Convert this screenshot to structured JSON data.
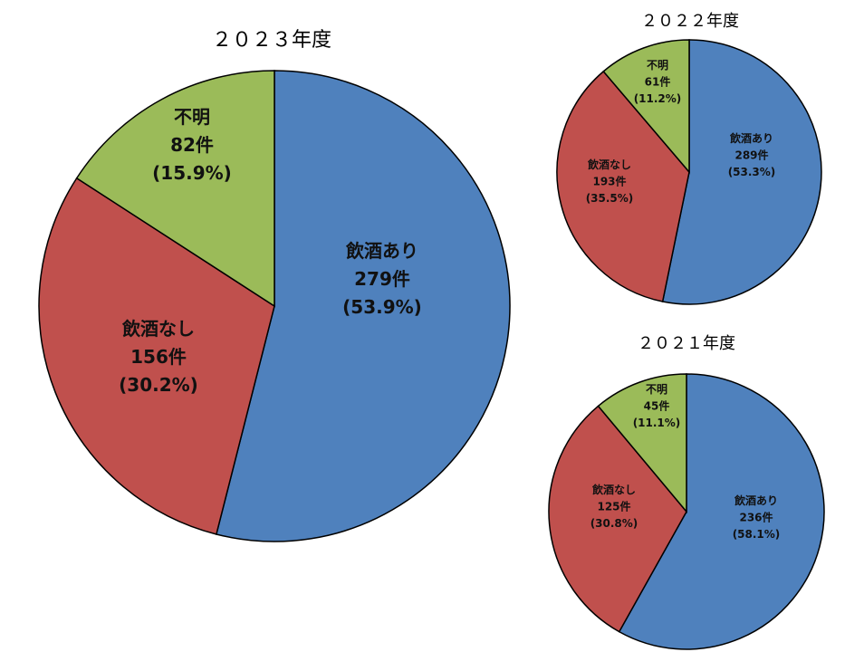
{
  "colors": {
    "飲酒あり": "#4f81bd",
    "飲酒なし": "#c0504d",
    "不明": "#9bbb59"
  },
  "chart_data": [
    {
      "type": "pie",
      "title": "２０２３年度",
      "categories": [
        "飲酒あり",
        "飲酒なし",
        "不明"
      ],
      "values": [
        279,
        156,
        82
      ],
      "labels": [
        {
          "name": "飲酒あり",
          "count": "279件",
          "pct": "(53.9%)"
        },
        {
          "name": "飲酒なし",
          "count": "156件",
          "pct": "(30.2%)"
        },
        {
          "name": "不明",
          "count": "82件",
          "pct": "(15.9%)"
        }
      ]
    },
    {
      "type": "pie",
      "title": "２０２２年度",
      "categories": [
        "飲酒あり",
        "飲酒なし",
        "不明"
      ],
      "values": [
        289,
        193,
        61
      ],
      "labels": [
        {
          "name": "飲酒あり",
          "count": "289件",
          "pct": "(53.3%)"
        },
        {
          "name": "飲酒なし",
          "count": "193件",
          "pct": "(35.5%)"
        },
        {
          "name": "不明",
          "count": "61件",
          "pct": "(11.2%)"
        }
      ]
    },
    {
      "type": "pie",
      "title": "２０２１年度",
      "categories": [
        "飲酒あり",
        "飲酒なし",
        "不明"
      ],
      "values": [
        236,
        125,
        45
      ],
      "labels": [
        {
          "name": "飲酒あり",
          "count": "236件",
          "pct": "(58.1%)"
        },
        {
          "name": "飲酒なし",
          "count": "125件",
          "pct": "(30.8%)"
        },
        {
          "name": "不明",
          "count": "45件",
          "pct": "(11.1%)"
        }
      ]
    }
  ]
}
